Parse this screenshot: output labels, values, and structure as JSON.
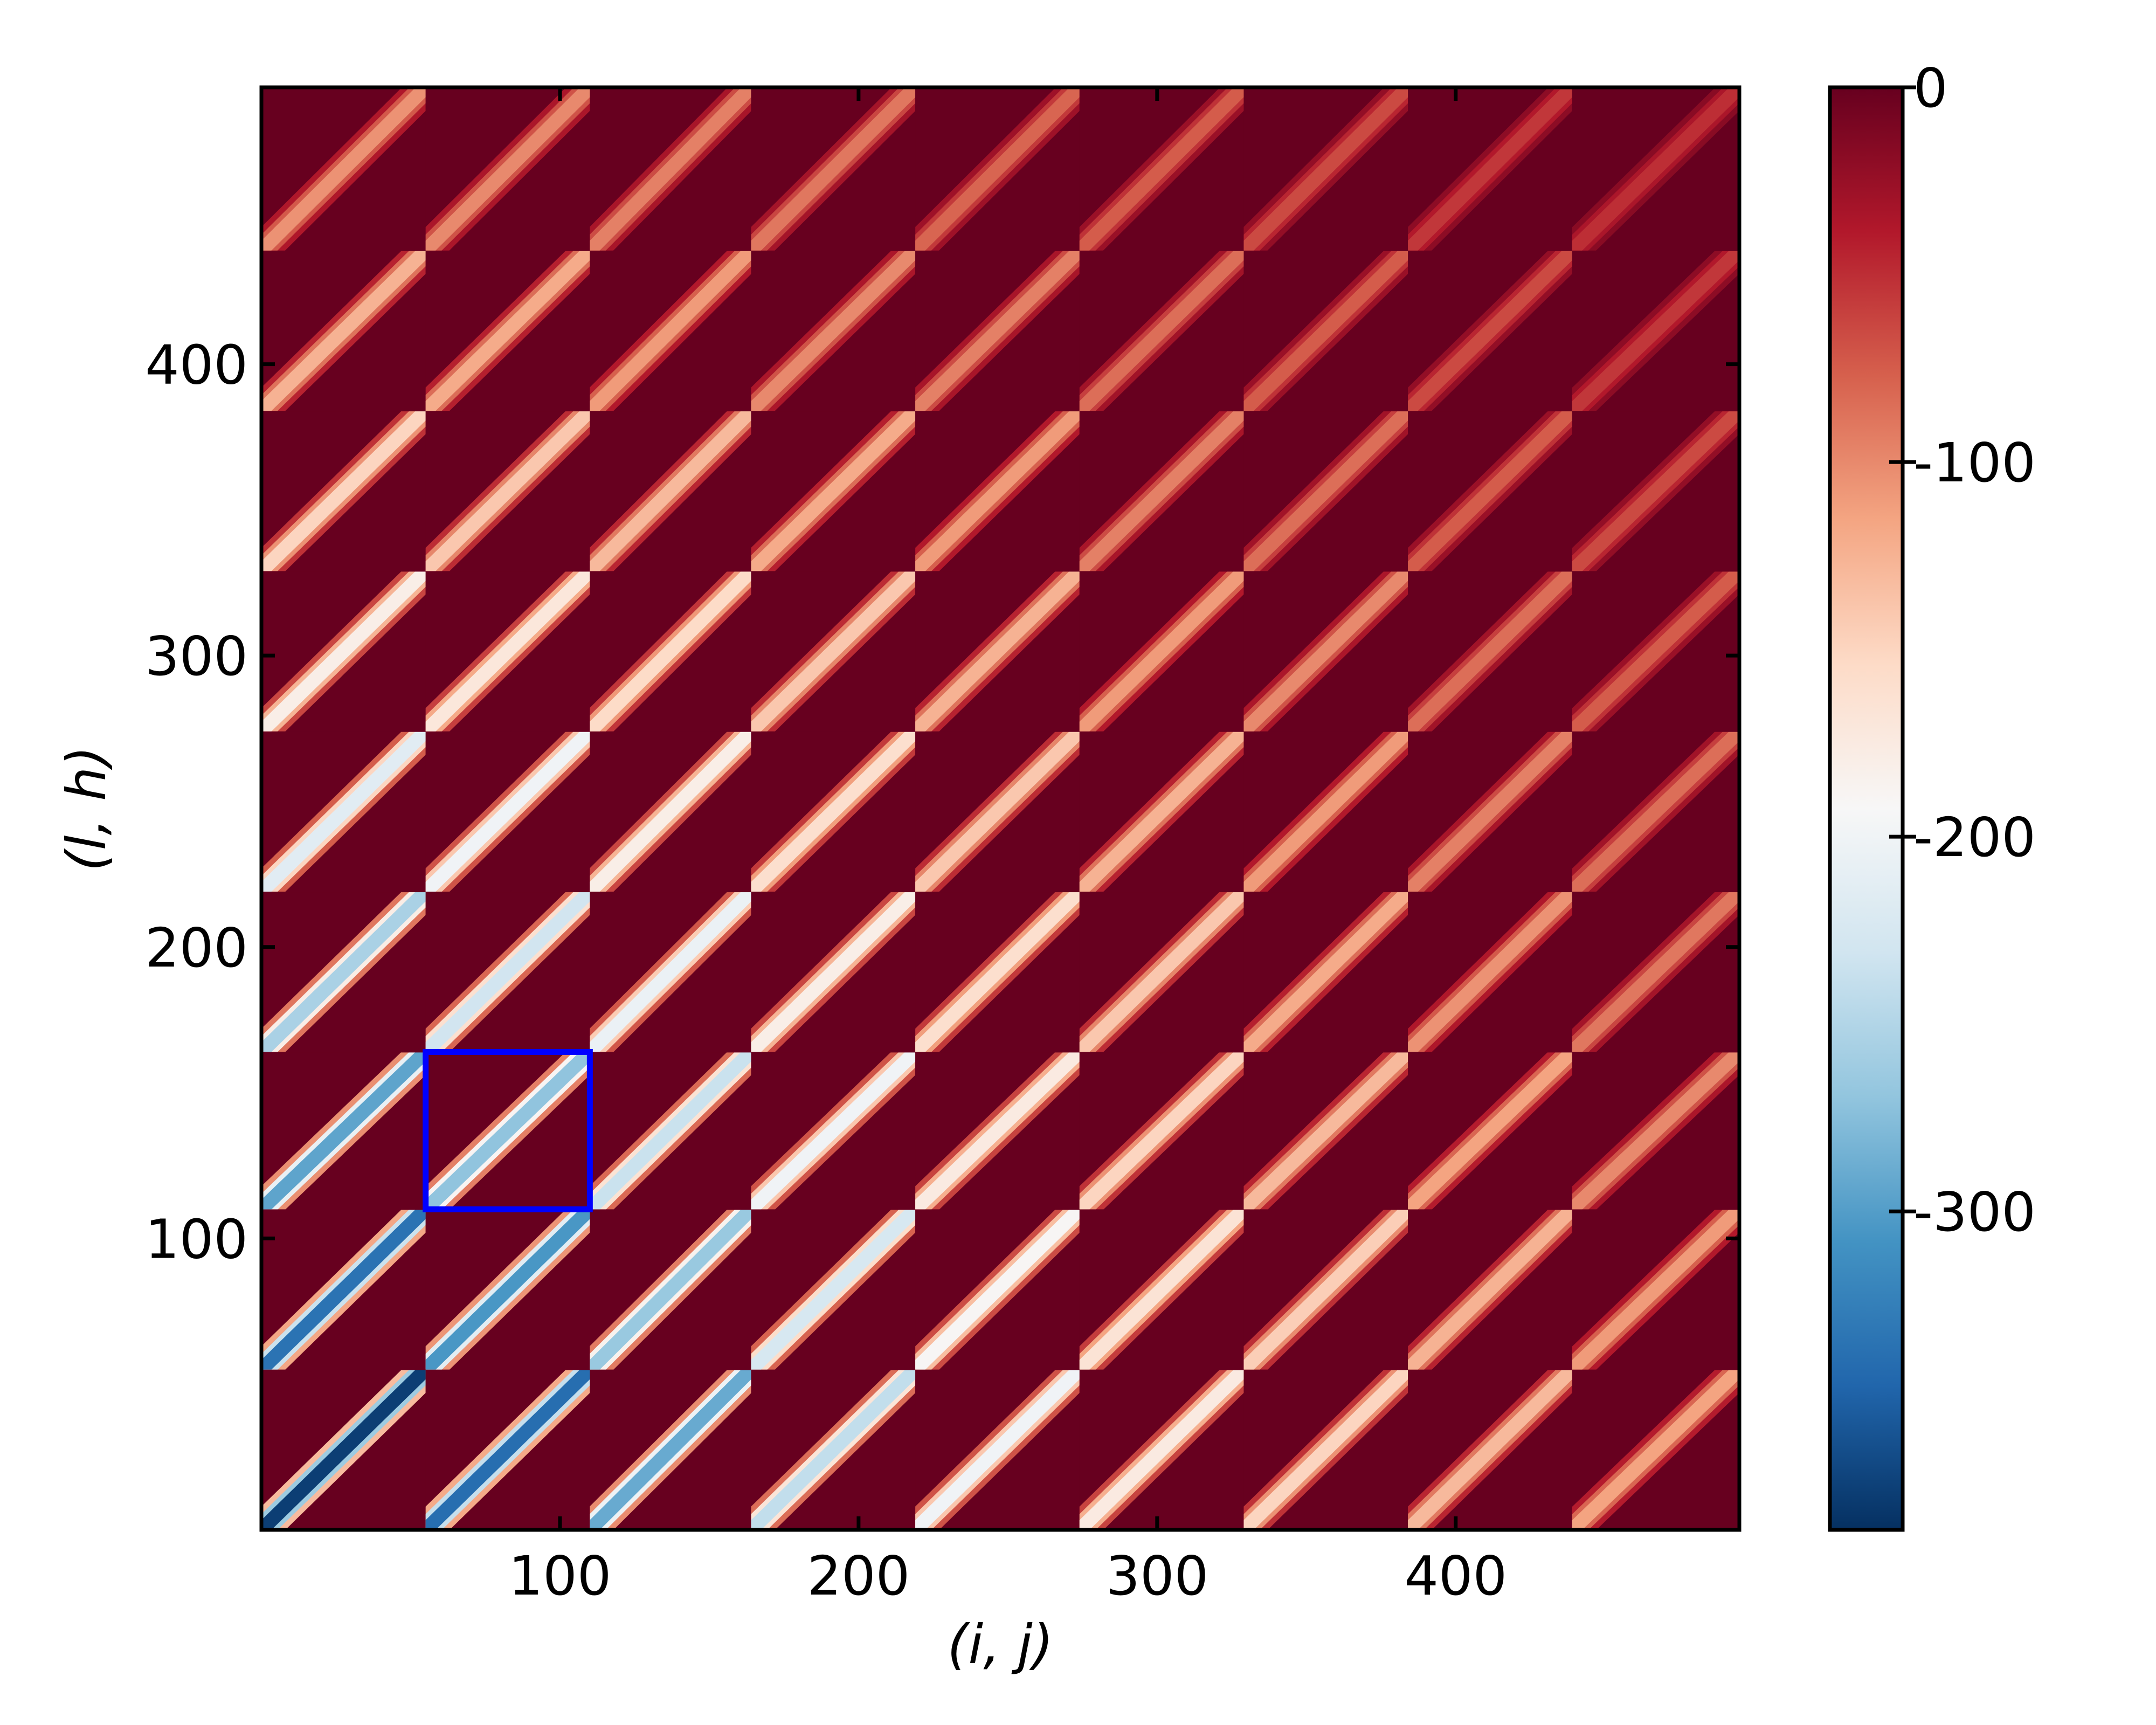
{
  "chart_data": {
    "type": "heatmap",
    "title": "",
    "xlabel": "(i, j)",
    "ylabel": "(l, h)",
    "xlim": [
      0,
      495
    ],
    "ylim": [
      0,
      495
    ],
    "xticks": [
      100,
      200,
      300,
      400
    ],
    "yticks": [
      100,
      200,
      300,
      400
    ],
    "blocks": {
      "count": 9,
      "boundaries": [
        0,
        55,
        110,
        164,
        219,
        274,
        329,
        384,
        439,
        495
      ],
      "cell_pattern": "diagonal band rising left to right within each block",
      "min_block_value_matrix_bottom_to_top": [
        [
          -375,
          -340,
          -290,
          -240,
          -200,
          -175,
          -150,
          -130,
          -115
        ],
        [
          -335,
          -305,
          -265,
          -225,
          -190,
          -165,
          -145,
          -125,
          -110
        ],
        [
          -295,
          -270,
          -235,
          -200,
          -175,
          -150,
          -130,
          -115,
          -100
        ],
        [
          -255,
          -230,
          -205,
          -180,
          -160,
          -140,
          -120,
          -105,
          -90
        ],
        [
          -215,
          -200,
          -180,
          -160,
          -140,
          -125,
          -110,
          -95,
          -85
        ],
        [
          -180,
          -170,
          -155,
          -140,
          -125,
          -110,
          -100,
          -85,
          -75
        ],
        [
          -150,
          -140,
          -130,
          -120,
          -110,
          -95,
          -85,
          -75,
          -65
        ],
        [
          -125,
          -120,
          -110,
          -100,
          -95,
          -85,
          -75,
          -65,
          -55
        ],
        [
          -105,
          -100,
          -95,
          -90,
          -80,
          -75,
          -65,
          -55,
          -50
        ]
      ]
    },
    "highlight": {
      "x_range": [
        55,
        110
      ],
      "y_range": [
        110,
        164
      ],
      "color": "#0000ff"
    },
    "colorbar": {
      "colormap": "RdBu_r",
      "vmin": -385,
      "vmax": 0,
      "ticks": [
        0,
        -100,
        -200,
        -300
      ],
      "tick_labels": [
        "0",
        "-100",
        "-200",
        "-300"
      ]
    },
    "grid": false,
    "legend": "none"
  }
}
